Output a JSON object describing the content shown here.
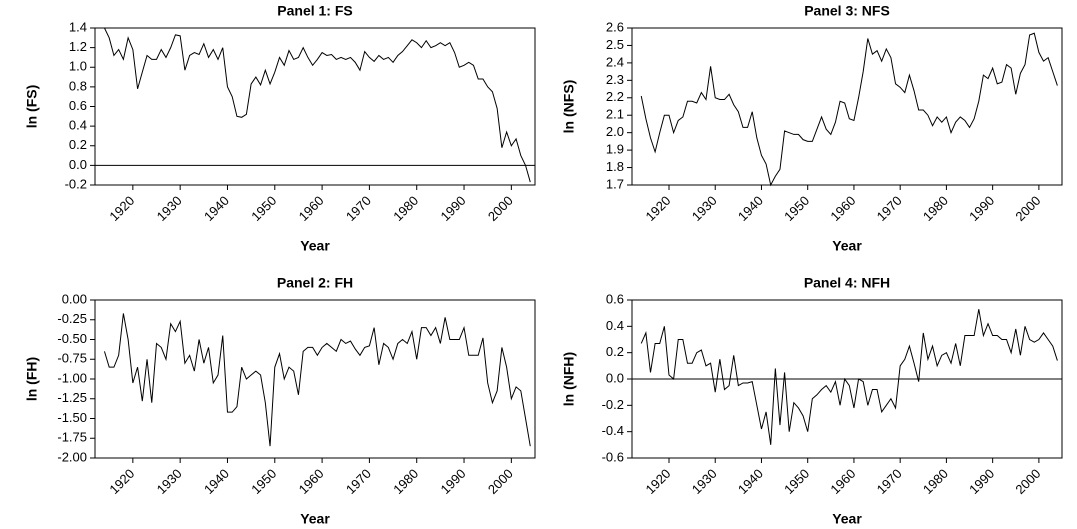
{
  "chart_data": [
    {
      "type": "line",
      "title": "Panel 1: FS",
      "xlabel": "Year",
      "ylabel": "ln (FS)",
      "color": "#000000",
      "zero_line": true,
      "x": [
        1914,
        1915,
        1916,
        1917,
        1918,
        1919,
        1920,
        1921,
        1922,
        1923,
        1924,
        1925,
        1926,
        1927,
        1928,
        1929,
        1930,
        1931,
        1932,
        1933,
        1934,
        1935,
        1936,
        1937,
        1938,
        1939,
        1940,
        1941,
        1942,
        1943,
        1944,
        1945,
        1946,
        1947,
        1948,
        1949,
        1950,
        1951,
        1952,
        1953,
        1954,
        1955,
        1956,
        1957,
        1958,
        1959,
        1960,
        1961,
        1962,
        1963,
        1964,
        1965,
        1966,
        1967,
        1968,
        1969,
        1970,
        1971,
        1972,
        1973,
        1974,
        1975,
        1976,
        1977,
        1978,
        1979,
        1980,
        1981,
        1982,
        1983,
        1984,
        1985,
        1986,
        1987,
        1988,
        1989,
        1990,
        1991,
        1992,
        1993,
        1994,
        1995,
        1996,
        1997,
        1998,
        1999,
        2000,
        2001,
        2002,
        2003,
        2004
      ],
      "values": [
        1.4,
        1.3,
        1.12,
        1.18,
        1.08,
        1.3,
        1.18,
        0.78,
        0.95,
        1.12,
        1.08,
        1.08,
        1.18,
        1.1,
        1.2,
        1.33,
        1.32,
        0.97,
        1.12,
        1.15,
        1.13,
        1.24,
        1.1,
        1.18,
        1.08,
        1.2,
        0.8,
        0.7,
        0.5,
        0.49,
        0.52,
        0.83,
        0.9,
        0.82,
        0.97,
        0.83,
        0.95,
        1.1,
        1.02,
        1.17,
        1.08,
        1.1,
        1.2,
        1.1,
        1.02,
        1.08,
        1.15,
        1.12,
        1.13,
        1.08,
        1.1,
        1.08,
        1.1,
        1.05,
        0.97,
        1.16,
        1.1,
        1.06,
        1.12,
        1.08,
        1.1,
        1.05,
        1.12,
        1.16,
        1.22,
        1.28,
        1.25,
        1.2,
        1.27,
        1.2,
        1.22,
        1.25,
        1.22,
        1.25,
        1.15,
        1.0,
        1.02,
        1.05,
        1.02,
        0.88,
        0.88,
        0.8,
        0.75,
        0.58,
        0.18,
        0.34,
        0.2,
        0.27,
        0.1,
        0.0,
        -0.17
      ],
      "xlim": [
        1912,
        2005
      ],
      "xticks": [
        1920,
        1930,
        1940,
        1950,
        1960,
        1970,
        1980,
        1990,
        2000
      ],
      "ylim": [
        -0.2,
        1.4
      ],
      "yticks": [
        -0.2,
        {
          "value": 0,
          "label": "0.0"
        },
        0.2,
        0.4,
        0.6,
        0.8,
        {
          "value": 1,
          "label": "1.0"
        },
        1.2,
        1.4
      ]
    },
    {
      "type": "line",
      "title": "Panel 3: NFS",
      "xlabel": "Year",
      "ylabel": "ln (NFS)",
      "color": "#000000",
      "zero_line": false,
      "x": [
        1914,
        1915,
        1916,
        1917,
        1918,
        1919,
        1920,
        1921,
        1922,
        1923,
        1924,
        1925,
        1926,
        1927,
        1928,
        1929,
        1930,
        1931,
        1932,
        1933,
        1934,
        1935,
        1936,
        1937,
        1938,
        1939,
        1940,
        1941,
        1942,
        1943,
        1944,
        1945,
        1946,
        1947,
        1948,
        1949,
        1950,
        1951,
        1952,
        1953,
        1954,
        1955,
        1956,
        1957,
        1958,
        1959,
        1960,
        1961,
        1962,
        1963,
        1964,
        1965,
        1966,
        1967,
        1968,
        1969,
        1970,
        1971,
        1972,
        1973,
        1974,
        1975,
        1976,
        1977,
        1978,
        1979,
        1980,
        1981,
        1982,
        1983,
        1984,
        1985,
        1986,
        1987,
        1988,
        1989,
        1990,
        1991,
        1992,
        1993,
        1994,
        1995,
        1996,
        1997,
        1998,
        1999,
        2000,
        2001,
        2002,
        2003,
        2004
      ],
      "values": [
        2.21,
        2.08,
        1.97,
        1.89,
        2.0,
        2.1,
        2.1,
        2.0,
        2.07,
        2.09,
        2.18,
        2.18,
        2.17,
        2.23,
        2.19,
        2.38,
        2.2,
        2.19,
        2.19,
        2.22,
        2.16,
        2.12,
        2.03,
        2.03,
        2.12,
        1.97,
        1.87,
        1.82,
        1.7,
        1.75,
        1.79,
        2.01,
        2.0,
        1.99,
        1.99,
        1.96,
        1.95,
        1.95,
        2.02,
        2.09,
        2.02,
        1.99,
        2.06,
        2.18,
        2.17,
        2.08,
        2.07,
        2.2,
        2.35,
        2.54,
        2.45,
        2.47,
        2.41,
        2.48,
        2.43,
        2.28,
        2.26,
        2.23,
        2.33,
        2.24,
        2.13,
        2.13,
        2.1,
        2.04,
        2.09,
        2.06,
        2.09,
        2.0,
        2.06,
        2.09,
        2.07,
        2.03,
        2.08,
        2.18,
        2.33,
        2.31,
        2.37,
        2.28,
        2.29,
        2.39,
        2.37,
        2.22,
        2.34,
        2.39,
        2.56,
        2.57,
        2.46,
        2.41,
        2.43,
        2.35,
        2.27
      ],
      "xlim": [
        1912,
        2005
      ],
      "xticks": [
        1920,
        1930,
        1940,
        1950,
        1960,
        1970,
        1980,
        1990,
        2000
      ],
      "ylim": [
        1.7,
        2.6
      ],
      "yticks": [
        1.7,
        1.8,
        1.9,
        {
          "value": 2,
          "label": "2.0"
        },
        2.1,
        2.2,
        2.3,
        2.4,
        2.5,
        2.6
      ]
    },
    {
      "type": "line",
      "title": "Panel 2: FH",
      "xlabel": "Year",
      "ylabel": "ln (FH)",
      "color": "#000000",
      "zero_line": false,
      "x": [
        1914,
        1915,
        1916,
        1917,
        1918,
        1919,
        1920,
        1921,
        1922,
        1923,
        1924,
        1925,
        1926,
        1927,
        1928,
        1929,
        1930,
        1931,
        1932,
        1933,
        1934,
        1935,
        1936,
        1937,
        1938,
        1939,
        1940,
        1941,
        1942,
        1943,
        1944,
        1945,
        1946,
        1947,
        1948,
        1949,
        1950,
        1951,
        1952,
        1953,
        1954,
        1955,
        1956,
        1957,
        1958,
        1959,
        1960,
        1961,
        1962,
        1963,
        1964,
        1965,
        1966,
        1967,
        1968,
        1969,
        1970,
        1971,
        1972,
        1973,
        1974,
        1975,
        1976,
        1977,
        1978,
        1979,
        1980,
        1981,
        1982,
        1983,
        1984,
        1985,
        1986,
        1987,
        1988,
        1989,
        1990,
        1991,
        1992,
        1993,
        1994,
        1995,
        1996,
        1997,
        1998,
        1999,
        2000,
        2001,
        2002,
        2003,
        2004
      ],
      "values": [
        -0.65,
        -0.85,
        -0.85,
        -0.7,
        -0.17,
        -0.5,
        -1.05,
        -0.85,
        -1.28,
        -0.75,
        -1.3,
        -0.55,
        -0.6,
        -0.75,
        -0.3,
        -0.4,
        -0.27,
        -0.8,
        -0.7,
        -0.9,
        -0.5,
        -0.8,
        -0.6,
        -1.05,
        -0.95,
        -0.45,
        -1.42,
        -1.42,
        -1.35,
        -0.85,
        -1.0,
        -0.95,
        -0.9,
        -0.95,
        -1.3,
        -1.85,
        -0.85,
        -0.68,
        -1.0,
        -0.85,
        -0.9,
        -1.2,
        -0.65,
        -0.6,
        -0.6,
        -0.7,
        -0.6,
        -0.55,
        -0.6,
        -0.65,
        -0.5,
        -0.55,
        -0.52,
        -0.62,
        -0.7,
        -0.6,
        -0.58,
        -0.35,
        -0.82,
        -0.55,
        -0.6,
        -0.75,
        -0.55,
        -0.5,
        -0.55,
        -0.4,
        -0.75,
        -0.35,
        -0.35,
        -0.45,
        -0.35,
        -0.55,
        -0.22,
        -0.5,
        -0.5,
        -0.5,
        -0.35,
        -0.7,
        -0.7,
        -0.7,
        -0.48,
        -1.05,
        -1.3,
        -1.15,
        -0.6,
        -0.85,
        -1.25,
        -1.1,
        -1.15,
        -1.5,
        -1.85
      ],
      "xlim": [
        1912,
        2005
      ],
      "xticks": [
        1920,
        1930,
        1940,
        1950,
        1960,
        1970,
        1980,
        1990,
        2000
      ],
      "ylim": [
        -2,
        0
      ],
      "yticks": [
        {
          "value": -2,
          "label": "-2.00"
        },
        {
          "value": -1.75,
          "label": "-1.75"
        },
        {
          "value": -1.5,
          "label": "-1.50"
        },
        {
          "value": -1.25,
          "label": "-1.25"
        },
        {
          "value": -1,
          "label": "-1.00"
        },
        {
          "value": -0.75,
          "label": "-0.75"
        },
        {
          "value": -0.5,
          "label": "-0.50"
        },
        {
          "value": -0.25,
          "label": "-0.25"
        },
        {
          "value": 0,
          "label": "0.00"
        }
      ]
    },
    {
      "type": "line",
      "title": "Panel 4: NFH",
      "xlabel": "Year",
      "ylabel": "ln (NFH)",
      "color": "#000000",
      "zero_line": true,
      "x": [
        1914,
        1915,
        1916,
        1917,
        1918,
        1919,
        1920,
        1921,
        1922,
        1923,
        1924,
        1925,
        1926,
        1927,
        1928,
        1929,
        1930,
        1931,
        1932,
        1933,
        1934,
        1935,
        1936,
        1937,
        1938,
        1939,
        1940,
        1941,
        1942,
        1943,
        1944,
        1945,
        1946,
        1947,
        1948,
        1949,
        1950,
        1951,
        1952,
        1953,
        1954,
        1955,
        1956,
        1957,
        1958,
        1959,
        1960,
        1961,
        1962,
        1963,
        1964,
        1965,
        1966,
        1967,
        1968,
        1969,
        1970,
        1971,
        1972,
        1973,
        1974,
        1975,
        1976,
        1977,
        1978,
        1979,
        1980,
        1981,
        1982,
        1983,
        1984,
        1985,
        1986,
        1987,
        1988,
        1989,
        1990,
        1991,
        1992,
        1993,
        1994,
        1995,
        1996,
        1997,
        1998,
        1999,
        2000,
        2001,
        2002,
        2003,
        2004
      ],
      "values": [
        0.27,
        0.35,
        0.05,
        0.27,
        0.27,
        0.4,
        0.03,
        0.0,
        0.3,
        0.3,
        0.12,
        0.12,
        0.2,
        0.22,
        0.1,
        0.12,
        -0.1,
        0.15,
        -0.08,
        -0.05,
        0.18,
        -0.05,
        -0.03,
        -0.03,
        -0.02,
        -0.2,
        -0.38,
        -0.25,
        -0.5,
        0.08,
        -0.35,
        0.05,
        -0.4,
        -0.18,
        -0.22,
        -0.28,
        -0.4,
        -0.15,
        -0.12,
        -0.08,
        -0.05,
        -0.1,
        -0.02,
        -0.2,
        0.0,
        -0.05,
        -0.22,
        0.0,
        -0.02,
        -0.2,
        -0.08,
        -0.08,
        -0.25,
        -0.2,
        -0.15,
        -0.22,
        0.1,
        0.15,
        0.25,
        0.12,
        -0.02,
        0.35,
        0.15,
        0.25,
        0.1,
        0.18,
        0.2,
        0.12,
        0.27,
        0.1,
        0.33,
        0.33,
        0.33,
        0.53,
        0.33,
        0.42,
        0.33,
        0.33,
        0.3,
        0.3,
        0.2,
        0.38,
        0.18,
        0.4,
        0.3,
        0.28,
        0.3,
        0.35,
        0.3,
        0.25,
        0.14
      ],
      "xlim": [
        1912,
        2005
      ],
      "xticks": [
        1920,
        1930,
        1940,
        1950,
        1960,
        1970,
        1980,
        1990,
        2000
      ],
      "ylim": [
        -0.6,
        0.6
      ],
      "yticks": [
        -0.6,
        -0.4,
        -0.2,
        {
          "value": 0,
          "label": "0.0"
        },
        0.2,
        0.4,
        0.6
      ]
    }
  ]
}
